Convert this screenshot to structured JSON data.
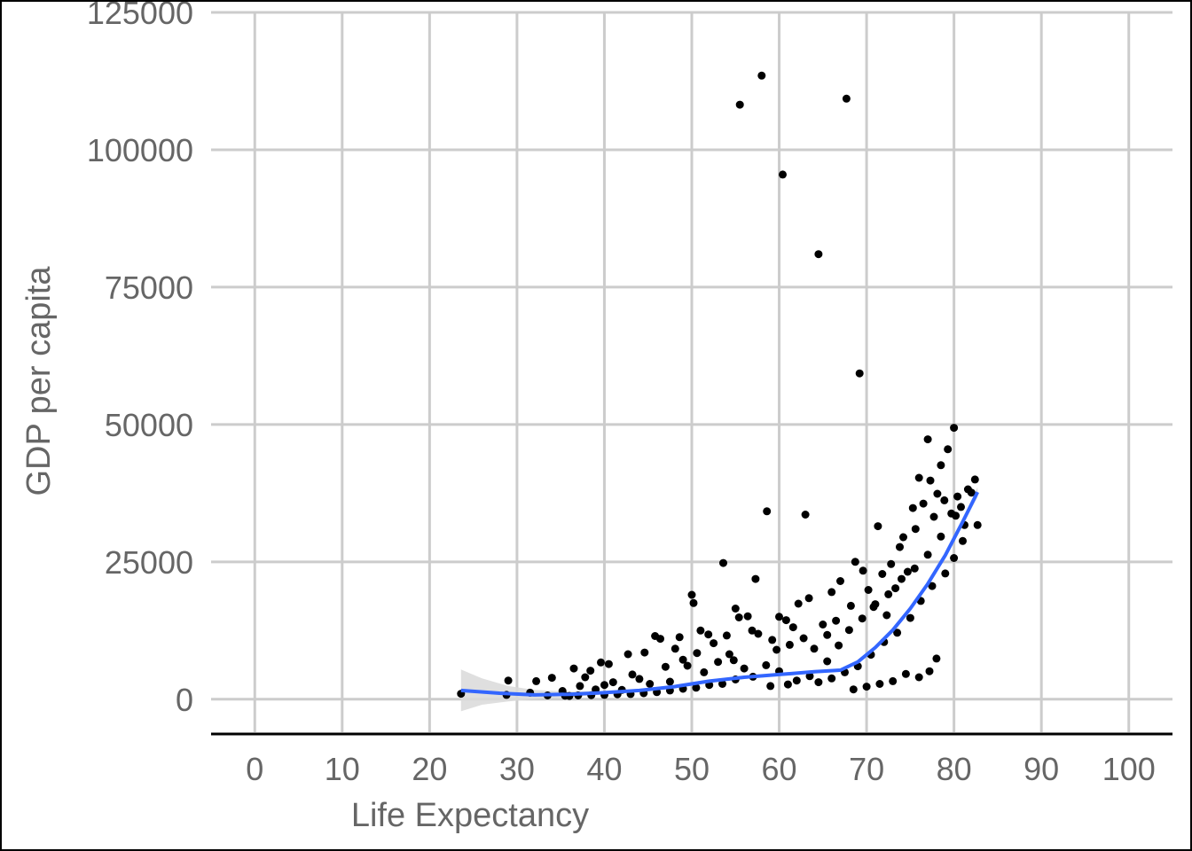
{
  "chart_data": {
    "type": "scatter",
    "title": "",
    "xlabel": "Life Expectancy",
    "ylabel": "GDP per capita",
    "xlim": [
      -5,
      105
    ],
    "ylim": [
      -6000,
      125000
    ],
    "x_ticks": [
      0,
      10,
      20,
      30,
      40,
      50,
      60,
      70,
      80,
      90,
      100
    ],
    "y_ticks": [
      0,
      25000,
      50000,
      75000,
      100000,
      125000
    ],
    "grid": true,
    "legend": "none",
    "colors": {
      "points": "#000000",
      "smooth_line": "#3366ff",
      "confidence_band": "#d9d9d9",
      "grid": "#cccccc"
    },
    "points": [
      [
        23.6,
        1000
      ],
      [
        28.8,
        800
      ],
      [
        29.0,
        3400
      ],
      [
        31.5,
        1200
      ],
      [
        32.2,
        3300
      ],
      [
        33.5,
        700
      ],
      [
        34.0,
        3900
      ],
      [
        35.2,
        1500
      ],
      [
        36.0,
        600
      ],
      [
        36.5,
        5600
      ],
      [
        37.2,
        2400
      ],
      [
        37.8,
        4000
      ],
      [
        38.4,
        5200
      ],
      [
        39.0,
        1800
      ],
      [
        39.6,
        6700
      ],
      [
        40.5,
        6400
      ],
      [
        40.0,
        2600
      ],
      [
        41.0,
        3100
      ],
      [
        42.0,
        1700
      ],
      [
        42.7,
        8200
      ],
      [
        43.2,
        4500
      ],
      [
        44.0,
        3700
      ],
      [
        44.6,
        8500
      ],
      [
        45.2,
        2800
      ],
      [
        45.8,
        11500
      ],
      [
        46.4,
        11000
      ],
      [
        47.0,
        5900
      ],
      [
        47.5,
        3200
      ],
      [
        48.1,
        9200
      ],
      [
        48.6,
        11300
      ],
      [
        49.0,
        7200
      ],
      [
        49.5,
        6100
      ],
      [
        50.0,
        19000
      ],
      [
        50.2,
        17500
      ],
      [
        50.6,
        8400
      ],
      [
        51.0,
        12500
      ],
      [
        51.4,
        4900
      ],
      [
        51.9,
        11800
      ],
      [
        52.5,
        10200
      ],
      [
        53.0,
        6800
      ],
      [
        53.6,
        24800
      ],
      [
        54.0,
        11600
      ],
      [
        54.3,
        8200
      ],
      [
        54.8,
        7100
      ],
      [
        55.0,
        16500
      ],
      [
        55.4,
        14900
      ],
      [
        55.5,
        108200
      ],
      [
        56.0,
        5600
      ],
      [
        56.4,
        15100
      ],
      [
        56.9,
        12500
      ],
      [
        57.3,
        21900
      ],
      [
        57.6,
        11900
      ],
      [
        58.0,
        113500
      ],
      [
        58.6,
        34200
      ],
      [
        59.2,
        10800
      ],
      [
        59.7,
        9000
      ],
      [
        60.0,
        15000
      ],
      [
        60.4,
        95500
      ],
      [
        60.8,
        14400
      ],
      [
        61.2,
        9900
      ],
      [
        61.6,
        13100
      ],
      [
        62.2,
        17400
      ],
      [
        62.8,
        11100
      ],
      [
        63.0,
        33600
      ],
      [
        63.4,
        18400
      ],
      [
        64.0,
        9200
      ],
      [
        64.5,
        81000
      ],
      [
        65.0,
        13600
      ],
      [
        65.5,
        11700
      ],
      [
        66.0,
        19500
      ],
      [
        66.5,
        14300
      ],
      [
        67.0,
        21500
      ],
      [
        67.7,
        109300
      ],
      [
        68.2,
        17000
      ],
      [
        68.7,
        25000
      ],
      [
        69.2,
        59300
      ],
      [
        69.6,
        23400
      ],
      [
        70.2,
        19900
      ],
      [
        70.8,
        16800
      ],
      [
        71.3,
        31500
      ],
      [
        71.8,
        22800
      ],
      [
        72.3,
        15300
      ],
      [
        72.8,
        24600
      ],
      [
        73.3,
        20200
      ],
      [
        73.8,
        27700
      ],
      [
        74.2,
        29500
      ],
      [
        74.7,
        23200
      ],
      [
        75.3,
        34800
      ],
      [
        75.6,
        31000
      ],
      [
        76.0,
        40300
      ],
      [
        76.5,
        35600
      ],
      [
        77.0,
        47300
      ],
      [
        77.3,
        39800
      ],
      [
        77.7,
        33200
      ],
      [
        78.1,
        37400
      ],
      [
        78.5,
        42600
      ],
      [
        78.9,
        36200
      ],
      [
        79.3,
        45500
      ],
      [
        79.7,
        33800
      ],
      [
        80.0,
        49400
      ],
      [
        80.4,
        36900
      ],
      [
        80.8,
        35000
      ],
      [
        81.2,
        31700
      ],
      [
        81.6,
        38200
      ],
      [
        82.0,
        37600
      ],
      [
        82.4,
        40000
      ],
      [
        82.7,
        31700
      ],
      [
        81.0,
        28800
      ],
      [
        80.0,
        25700
      ],
      [
        79.0,
        22900
      ],
      [
        77.5,
        20600
      ],
      [
        76.2,
        17900
      ],
      [
        75.0,
        14800
      ],
      [
        73.5,
        12100
      ],
      [
        72.0,
        10400
      ],
      [
        70.5,
        8100
      ],
      [
        69.0,
        6000
      ],
      [
        67.5,
        4900
      ],
      [
        66.0,
        3800
      ],
      [
        64.5,
        3100
      ],
      [
        77.2,
        5100
      ],
      [
        78.0,
        7400
      ],
      [
        76.0,
        4000
      ],
      [
        74.5,
        4600
      ],
      [
        73.0,
        3300
      ],
      [
        71.5,
        2800
      ],
      [
        70.0,
        2300
      ],
      [
        68.5,
        1800
      ],
      [
        58.5,
        6200
      ],
      [
        57.0,
        4100
      ],
      [
        55.0,
        3600
      ],
      [
        53.5,
        2800
      ],
      [
        52.0,
        2600
      ],
      [
        50.5,
        2100
      ],
      [
        49.0,
        1900
      ],
      [
        47.5,
        1600
      ],
      [
        46.0,
        1300
      ],
      [
        44.5,
        1100
      ],
      [
        43.0,
        950
      ],
      [
        41.5,
        900
      ],
      [
        40.0,
        800
      ],
      [
        38.5,
        750
      ],
      [
        37.0,
        700
      ],
      [
        35.5,
        650
      ],
      [
        62.0,
        3400
      ],
      [
        63.5,
        4200
      ],
      [
        61.0,
        2700
      ],
      [
        60.0,
        5100
      ],
      [
        59.0,
        2400
      ],
      [
        65.5,
        6900
      ],
      [
        66.8,
        9800
      ],
      [
        68.0,
        12600
      ],
      [
        69.5,
        14700
      ],
      [
        71.0,
        17300
      ],
      [
        72.5,
        19100
      ],
      [
        74.0,
        21900
      ],
      [
        75.5,
        23800
      ],
      [
        77.0,
        26300
      ],
      [
        78.5,
        29600
      ],
      [
        80.2,
        33400
      ]
    ],
    "smooth_line": [
      [
        23.6,
        1600
      ],
      [
        28.0,
        1100
      ],
      [
        32.0,
        800
      ],
      [
        36.0,
        900
      ],
      [
        40.0,
        1200
      ],
      [
        44.0,
        1600
      ],
      [
        48.0,
        2300
      ],
      [
        52.0,
        3300
      ],
      [
        56.0,
        4000
      ],
      [
        60.0,
        4500
      ],
      [
        64.0,
        5000
      ],
      [
        67.0,
        5300
      ],
      [
        69.0,
        6800
      ],
      [
        71.0,
        9400
      ],
      [
        73.0,
        12600
      ],
      [
        75.0,
        16500
      ],
      [
        77.0,
        21000
      ],
      [
        79.0,
        26200
      ],
      [
        81.0,
        32300
      ],
      [
        82.7,
        37700
      ]
    ],
    "confidence_band": [
      [
        23.6,
        5400,
        -2200
      ],
      [
        26.0,
        3800,
        -1000
      ],
      [
        29.0,
        2400,
        -400
      ],
      [
        32.0,
        1700,
        0
      ],
      [
        36.0,
        1400,
        400
      ],
      [
        40.0,
        1500,
        900
      ],
      [
        44.0,
        1900,
        1300
      ],
      [
        48.0,
        2600,
        2000
      ],
      [
        52.0,
        3600,
        3000
      ],
      [
        56.0,
        4300,
        3700
      ],
      [
        60.0,
        4800,
        4200
      ],
      [
        64.0,
        5300,
        4700
      ],
      [
        67.0,
        5600,
        5000
      ],
      [
        69.0,
        7100,
        6500
      ],
      [
        71.0,
        9700,
        9100
      ],
      [
        73.0,
        12900,
        12300
      ],
      [
        75.0,
        16800,
        16200
      ],
      [
        77.0,
        21400,
        20600
      ],
      [
        79.0,
        26700,
        25700
      ],
      [
        81.0,
        32900,
        31700
      ],
      [
        82.7,
        38600,
        36800
      ]
    ]
  }
}
